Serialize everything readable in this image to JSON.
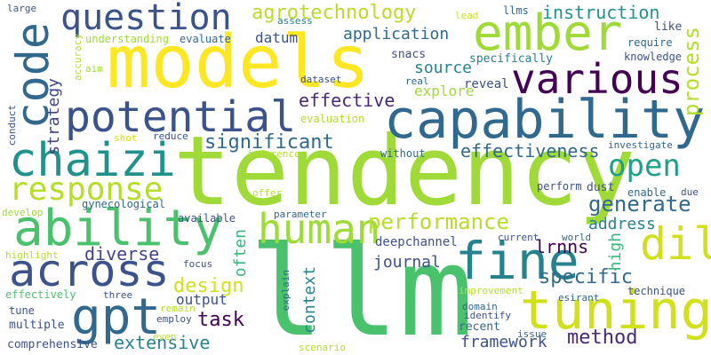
{
  "wordcloud": {
    "words": [
      {
        "text": "models",
        "color": "#fde725"
      },
      {
        "text": "tendency",
        "color": "#a0da39"
      },
      {
        "text": "llm",
        "color": "#4ac16d"
      },
      {
        "text": "capability",
        "color": "#31688e"
      },
      {
        "text": "potential",
        "color": "#3b528b"
      },
      {
        "text": "ember",
        "color": "#a0da39"
      },
      {
        "text": "various",
        "color": "#440154"
      },
      {
        "text": "question",
        "color": "#3b528b"
      },
      {
        "text": "code",
        "color": "#31688e"
      },
      {
        "text": "chaizi",
        "color": "#21918c"
      },
      {
        "text": "ability",
        "color": "#4ac16d"
      },
      {
        "text": "across",
        "color": "#3b528b"
      },
      {
        "text": "gpt",
        "color": "#31688e"
      },
      {
        "text": "human",
        "color": "#a0da39"
      },
      {
        "text": "fine",
        "color": "#26828e"
      },
      {
        "text": "tuning",
        "color": "#d0e11c"
      },
      {
        "text": "dil",
        "color": "#d0e11c"
      },
      {
        "text": "response",
        "color": "#b5de2b"
      },
      {
        "text": "open",
        "color": "#1fa187"
      },
      {
        "text": "significant",
        "color": "#31688e"
      },
      {
        "text": "agrotechnology",
        "color": "#b5de2b"
      },
      {
        "text": "instruction",
        "color": "#21918c"
      },
      {
        "text": "process",
        "color": "#b5de2b"
      },
      {
        "text": "effective",
        "color": "#482878"
      },
      {
        "text": "effectiveness",
        "color": "#31688e"
      },
      {
        "text": "performance",
        "color": "#b5de2b"
      },
      {
        "text": "generate",
        "color": "#31688e"
      },
      {
        "text": "specific",
        "color": "#31688e"
      },
      {
        "text": "method",
        "color": "#482878"
      },
      {
        "text": "design",
        "color": "#d0e11c"
      },
      {
        "text": "diverse",
        "color": "#414487"
      },
      {
        "text": "extensive",
        "color": "#26828e"
      },
      {
        "text": "task",
        "color": "#440154"
      },
      {
        "text": "framework",
        "color": "#3b528b"
      },
      {
        "text": "lrnns",
        "color": "#440154"
      },
      {
        "text": "journal",
        "color": "#3b528b"
      },
      {
        "text": "application",
        "color": "#31688e"
      },
      {
        "text": "source",
        "color": "#26828e"
      },
      {
        "text": "explore",
        "color": "#a0da39"
      },
      {
        "text": "strategy",
        "color": "#414487"
      },
      {
        "text": "datum",
        "color": "#3b528b"
      },
      {
        "text": "address",
        "color": "#26828e"
      },
      {
        "text": "often",
        "color": "#35b779"
      },
      {
        "text": "high",
        "color": "#35b779"
      },
      {
        "text": "context",
        "color": "#26828e"
      },
      {
        "text": "output",
        "color": "#3b528b"
      },
      {
        "text": "llms",
        "color": "#31688e"
      },
      {
        "text": "lead",
        "color": "#d0e11c"
      },
      {
        "text": "assess",
        "color": "#26828e"
      },
      {
        "text": "large",
        "color": "#3b528b"
      },
      {
        "text": "accuracy",
        "color": "#b5de2b"
      },
      {
        "text": "understanding",
        "color": "#a0da39"
      },
      {
        "text": "evaluate",
        "color": "#31688e"
      },
      {
        "text": "aim",
        "color": "#a0da39"
      },
      {
        "text": "dataset",
        "color": "#3b528b"
      },
      {
        "text": "real",
        "color": "#31688e"
      },
      {
        "text": "reveal",
        "color": "#3b528b"
      },
      {
        "text": "snacs",
        "color": "#3b528b"
      },
      {
        "text": "specifically",
        "color": "#26828e"
      },
      {
        "text": "like",
        "color": "#3b528b"
      },
      {
        "text": "require",
        "color": "#31688e"
      },
      {
        "text": "knowledge",
        "color": "#3b528b"
      },
      {
        "text": "evaluation",
        "color": "#b5de2b"
      },
      {
        "text": "conduct",
        "color": "#3b528b"
      },
      {
        "text": "shot",
        "color": "#d0e11c"
      },
      {
        "text": "reduce",
        "color": "#3b528b"
      },
      {
        "text": "inference",
        "color": "#b5de2b"
      },
      {
        "text": "without",
        "color": "#31688e"
      },
      {
        "text": "investigate",
        "color": "#31688e"
      },
      {
        "text": "perform",
        "color": "#3b528b"
      },
      {
        "text": "dust",
        "color": "#3b528b"
      },
      {
        "text": "enable",
        "color": "#31688e"
      },
      {
        "text": "due",
        "color": "#3b528b"
      },
      {
        "text": "offer",
        "color": "#b5de2b"
      },
      {
        "text": "gynecological",
        "color": "#31688e"
      },
      {
        "text": "develop",
        "color": "#a0da39"
      },
      {
        "text": "available",
        "color": "#3b528b"
      },
      {
        "text": "parameter",
        "color": "#31688e"
      },
      {
        "text": "deepchannel",
        "color": "#3b528b"
      },
      {
        "text": "highlight",
        "color": "#b5de2b"
      },
      {
        "text": "focus",
        "color": "#3b528b"
      },
      {
        "text": "explain",
        "color": "#31688e"
      },
      {
        "text": "current",
        "color": "#3b528b"
      },
      {
        "text": "world",
        "color": "#31688e"
      },
      {
        "text": "effectively",
        "color": "#4ac16d"
      },
      {
        "text": "three",
        "color": "#3b528b"
      },
      {
        "text": "tune",
        "color": "#3b528b"
      },
      {
        "text": "remain",
        "color": "#b5de2b"
      },
      {
        "text": "employ",
        "color": "#3b528b"
      },
      {
        "text": "improvement",
        "color": "#b5de2b"
      },
      {
        "text": "esirant",
        "color": "#31688e"
      },
      {
        "text": "technique",
        "color": "#3b528b"
      },
      {
        "text": "domain",
        "color": "#31688e"
      },
      {
        "text": "identify",
        "color": "#3b528b"
      },
      {
        "text": "multiple",
        "color": "#3b528b"
      },
      {
        "text": "recent",
        "color": "#31688e"
      },
      {
        "text": "issue",
        "color": "#31688e"
      },
      {
        "text": "comprehensive",
        "color": "#3b528b"
      },
      {
        "text": "even",
        "color": "#b5de2b"
      },
      {
        "text": "scenario",
        "color": "#b5de2b"
      }
    ]
  }
}
